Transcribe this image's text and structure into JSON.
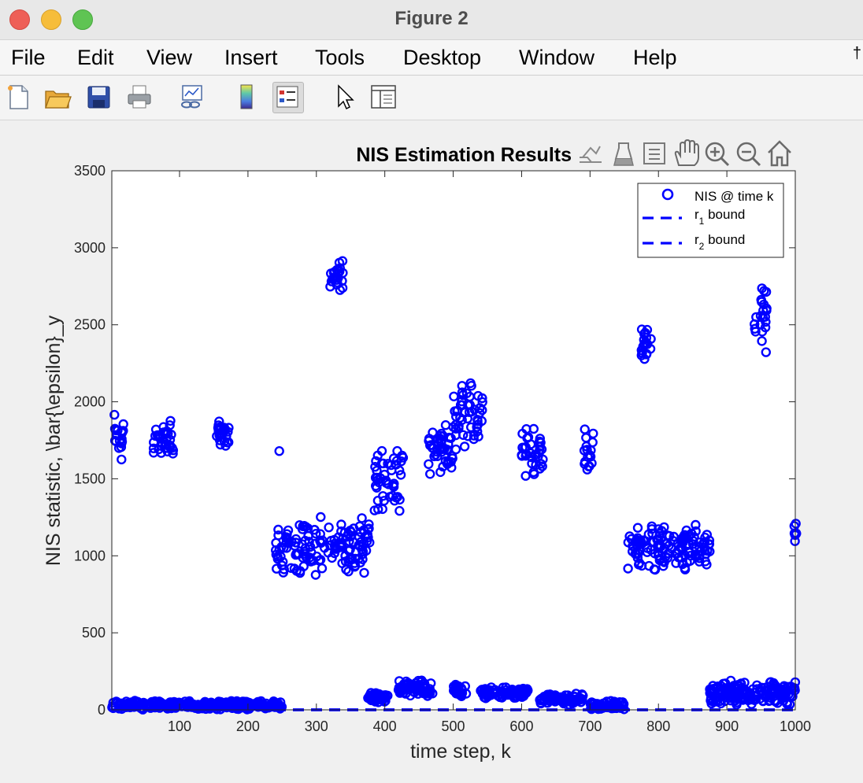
{
  "window": {
    "title": "Figure 2"
  },
  "menu": {
    "items": [
      "File",
      "Edit",
      "View",
      "Insert",
      "Tools",
      "Desktop",
      "Window",
      "Help"
    ]
  },
  "toolbar": {
    "buttons": [
      "new-figure-icon",
      "open-file-icon",
      "save-icon",
      "print-icon",
      "link-plot-icon",
      "colorbar-icon",
      "legend-icon",
      "edit-plot-cursor-icon",
      "property-inspector-icon"
    ]
  },
  "axes_toolbar": {
    "buttons": [
      "export-icon",
      "brush-icon",
      "data-tips-icon",
      "pan-icon",
      "zoom-in-icon",
      "zoom-out-icon",
      "home-icon"
    ]
  },
  "colors": {
    "series": "#0000ff",
    "axis": "#262626",
    "background": "#ffffff"
  },
  "chart_data": {
    "type": "scatter",
    "title": "NIS Estimation Results",
    "xlabel": "time step, k",
    "ylabel": "NIS statistic, \\bar{\\epsilon}_y",
    "xlim": [
      1,
      1000
    ],
    "ylim": [
      0,
      3500
    ],
    "xticks": [
      100,
      200,
      300,
      400,
      500,
      600,
      700,
      800,
      900,
      1000
    ],
    "yticks": [
      0,
      500,
      1000,
      1500,
      2000,
      2500,
      3000,
      3500
    ],
    "grid": false,
    "legend": {
      "placement": "top-right",
      "entries": [
        {
          "label": "NIS @ time k",
          "marker": "circle"
        },
        {
          "label": "r",
          "sub": "1",
          "suffix": " bound",
          "style": "dashed"
        },
        {
          "label": "r",
          "sub": "2",
          "suffix": " bound",
          "style": "dashed"
        }
      ]
    },
    "series": [
      {
        "name": "NIS @ time k",
        "marker": "circle",
        "clusters": [
          {
            "x": [
              2,
              18
            ],
            "y": [
              1550,
              2000
            ]
          },
          {
            "x": [
              62,
              92
            ],
            "y": [
              1570,
              1920
            ]
          },
          {
            "x": [
              152,
              172
            ],
            "y": [
              1700,
              1900
            ]
          },
          {
            "x": [
              245,
              245
            ],
            "y": [
              1680,
              1680
            ]
          },
          {
            "x": [
              240,
              378
            ],
            "y": [
              850,
              1260
            ]
          },
          {
            "x": [
              320,
              340
            ],
            "y": [
              2700,
              2950
            ]
          },
          {
            "x": [
              385,
              428
            ],
            "y": [
              1280,
              1720
            ]
          },
          {
            "x": [
              462,
              500
            ],
            "y": [
              1490,
              1880
            ]
          },
          {
            "x": [
              500,
              545
            ],
            "y": [
              1660,
              2170
            ]
          },
          {
            "x": [
              600,
              632
            ],
            "y": [
              1500,
              1880
            ]
          },
          {
            "x": [
              690,
              705
            ],
            "y": [
              1470,
              1860
            ]
          },
          {
            "x": [
              755,
              875
            ],
            "y": [
              890,
              1220
            ]
          },
          {
            "x": [
              775,
              790
            ],
            "y": [
              2240,
              2500
            ]
          },
          {
            "x": [
              940,
              960
            ],
            "y": [
              2300,
              2770
            ]
          },
          {
            "x": [
              997,
              1002
            ],
            "y": [
              1090,
              1240
            ]
          },
          {
            "x": [
              1,
              250
            ],
            "y": [
              0,
              60
            ]
          },
          {
            "x": [
              375,
              405
            ],
            "y": [
              40,
              120
            ]
          },
          {
            "x": [
              420,
              470
            ],
            "y": [
              80,
              200
            ]
          },
          {
            "x": [
              500,
              520
            ],
            "y": [
              80,
              170
            ]
          },
          {
            "x": [
              540,
              610
            ],
            "y": [
              70,
              150
            ]
          },
          {
            "x": [
              625,
              690
            ],
            "y": [
              30,
              110
            ]
          },
          {
            "x": [
              700,
              750
            ],
            "y": [
              0,
              60
            ]
          },
          {
            "x": [
              875,
              1000
            ],
            "y": [
              20,
              200
            ]
          }
        ]
      },
      {
        "name": "r1 bound",
        "style": "dashed",
        "y": 0,
        "x": [
          1,
          1000
        ]
      },
      {
        "name": "r2 bound",
        "style": "dashed",
        "y": 0,
        "x": [
          1,
          1000
        ]
      }
    ]
  }
}
